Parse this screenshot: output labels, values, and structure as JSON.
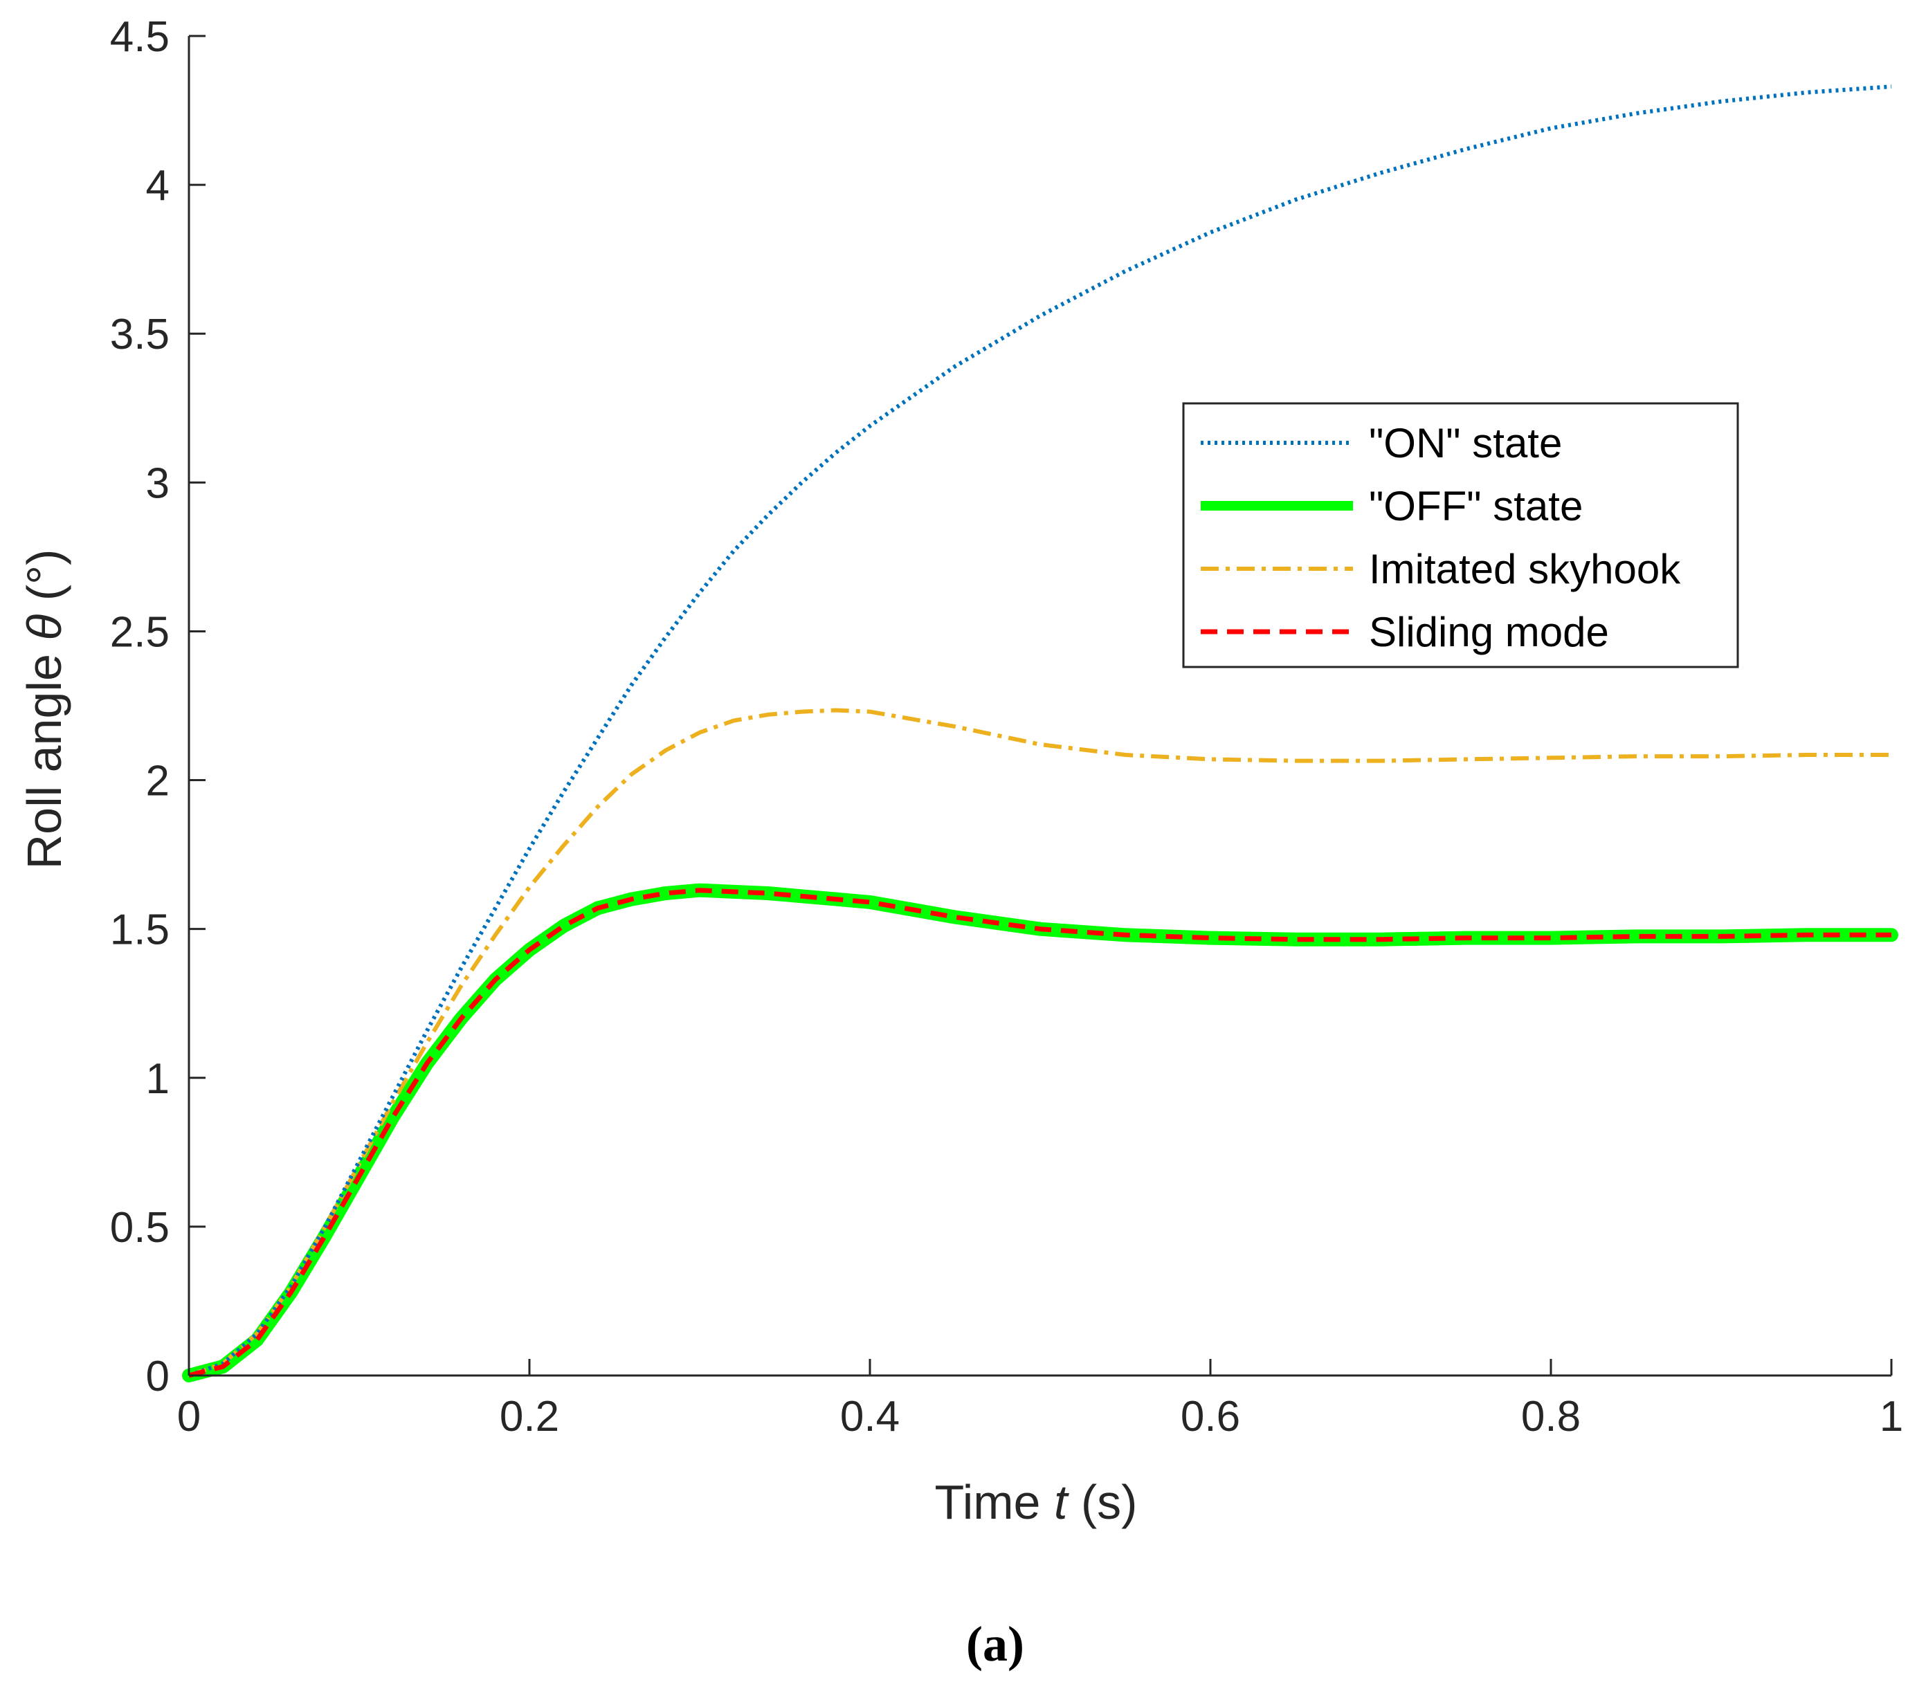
{
  "chart_data": {
    "type": "line",
    "title": "",
    "xlabel_prefix": "Time ",
    "xlabel_var": "t",
    "xlabel_suffix": " (s)",
    "ylabel_prefix": "Roll angle ",
    "ylabel_var": "θ",
    "ylabel_suffix": " (°)",
    "xlim": [
      0,
      1
    ],
    "ylim": [
      0,
      4.5
    ],
    "xticks": [
      0,
      0.2,
      0.4,
      0.6,
      0.8,
      1
    ],
    "xtick_labels": [
      "0",
      "0.2",
      "0.4",
      "0.6",
      "0.8",
      "1"
    ],
    "yticks": [
      0,
      0.5,
      1,
      1.5,
      2,
      2.5,
      3,
      3.5,
      4,
      4.5
    ],
    "ytick_labels": [
      "0",
      "0.5",
      "1",
      "1.5",
      "2",
      "2.5",
      "3",
      "3.5",
      "4",
      "4.5"
    ],
    "grid": false,
    "legend_position": "center-right",
    "x": [
      0,
      0.02,
      0.04,
      0.06,
      0.08,
      0.1,
      0.12,
      0.14,
      0.16,
      0.18,
      0.2,
      0.22,
      0.24,
      0.26,
      0.28,
      0.3,
      0.32,
      0.34,
      0.36,
      0.38,
      0.4,
      0.45,
      0.5,
      0.55,
      0.6,
      0.65,
      0.7,
      0.75,
      0.8,
      0.85,
      0.9,
      0.95,
      1.0
    ],
    "series": [
      {
        "name": "\"ON\" state",
        "color": "#0072BD",
        "style": "dotted",
        "values": [
          0,
          0.04,
          0.14,
          0.3,
          0.5,
          0.72,
          0.94,
          1.16,
          1.37,
          1.57,
          1.77,
          1.96,
          2.14,
          2.32,
          2.48,
          2.63,
          2.77,
          2.89,
          3.0,
          3.1,
          3.19,
          3.39,
          3.56,
          3.71,
          3.84,
          3.95,
          4.04,
          4.12,
          4.19,
          4.24,
          4.28,
          4.31,
          4.33
        ]
      },
      {
        "name": "\"OFF\" state",
        "color": "#00FF00",
        "style": "solid-thick",
        "values": [
          0,
          0.03,
          0.12,
          0.28,
          0.47,
          0.67,
          0.87,
          1.05,
          1.2,
          1.33,
          1.43,
          1.51,
          1.57,
          1.6,
          1.62,
          1.63,
          1.625,
          1.62,
          1.61,
          1.6,
          1.59,
          1.54,
          1.5,
          1.48,
          1.47,
          1.465,
          1.465,
          1.47,
          1.47,
          1.475,
          1.475,
          1.48,
          1.48
        ]
      },
      {
        "name": "Imitated skyhook",
        "color": "#EDB120",
        "style": "dashdot",
        "values": [
          0,
          0.04,
          0.14,
          0.3,
          0.5,
          0.71,
          0.92,
          1.12,
          1.31,
          1.48,
          1.64,
          1.78,
          1.91,
          2.02,
          2.1,
          2.16,
          2.2,
          2.22,
          2.23,
          2.235,
          2.23,
          2.18,
          2.12,
          2.085,
          2.07,
          2.065,
          2.065,
          2.07,
          2.075,
          2.08,
          2.08,
          2.085,
          2.085
        ]
      },
      {
        "name": "Sliding mode",
        "color": "#FF0000",
        "style": "dashed",
        "values": [
          0,
          0.03,
          0.12,
          0.28,
          0.47,
          0.67,
          0.87,
          1.05,
          1.2,
          1.33,
          1.43,
          1.51,
          1.57,
          1.6,
          1.62,
          1.63,
          1.625,
          1.62,
          1.61,
          1.6,
          1.59,
          1.54,
          1.5,
          1.48,
          1.47,
          1.465,
          1.465,
          1.47,
          1.47,
          1.475,
          1.475,
          1.48,
          1.48
        ]
      }
    ]
  },
  "caption": "(a)"
}
